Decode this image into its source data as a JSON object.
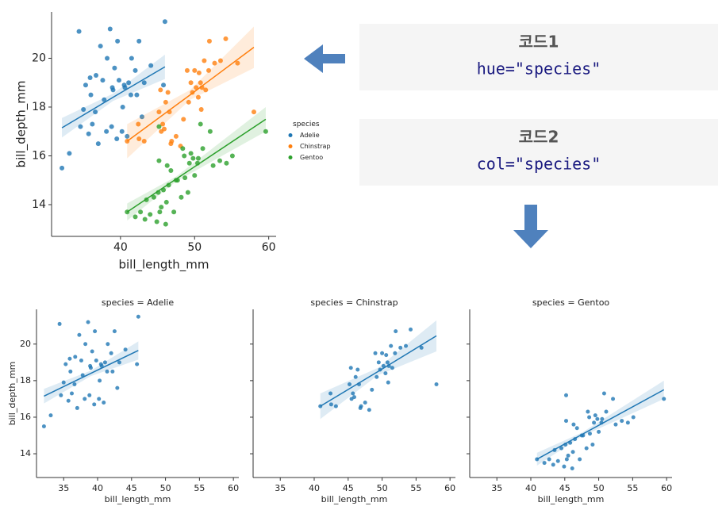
{
  "chart_data": [
    {
      "type": "scatter",
      "xlabel": "bill_length_mm",
      "ylabel": "bill_depth_mm",
      "xlim": [
        30.7,
        61
      ],
      "ylim": [
        12.7,
        21.9
      ],
      "xticks": [
        40,
        50,
        60
      ],
      "yticks": [
        14,
        16,
        18,
        20
      ],
      "legend": true,
      "legend_title": "species",
      "legend_position": "right",
      "series": [
        {
          "name": "Adelie",
          "color": "#1f77b4",
          "x": [
            32.1,
            33.1,
            34.4,
            34.6,
            35.0,
            35.3,
            35.7,
            35.9,
            36.2,
            36.6,
            36.7,
            37.0,
            37.3,
            37.6,
            37.8,
            38.1,
            38.2,
            38.6,
            38.8,
            39.0,
            39.2,
            39.5,
            39.6,
            39.8,
            40.2,
            40.3,
            40.6,
            40.9,
            41.1,
            41.4,
            41.5,
            42.0,
            42.2,
            42.5,
            42.9,
            43.2,
            44.1,
            45.8,
            46.0,
            36.0,
            38.9,
            40.5
          ],
          "values": [
            15.5,
            16.1,
            21.1,
            17.2,
            17.9,
            18.9,
            16.9,
            19.2,
            17.3,
            17.8,
            19.3,
            16.5,
            20.5,
            19.1,
            18.3,
            17.0,
            20.0,
            21.2,
            17.2,
            18.7,
            19.6,
            16.7,
            20.7,
            19.1,
            17.0,
            18.0,
            18.8,
            16.8,
            19.0,
            18.5,
            20.0,
            19.5,
            18.5,
            20.7,
            17.6,
            19.0,
            19.7,
            18.9,
            21.5,
            18.5,
            18.8,
            18.9
          ],
          "fit_x": [
            32.1,
            39,
            46
          ],
          "fit_y": [
            17.15,
            18.4,
            19.65
          ],
          "ci_low": [
            16.75,
            18.25,
            19.15
          ],
          "ci_high": [
            17.55,
            18.55,
            20.15
          ]
        },
        {
          "name": "Chinstrap",
          "color": "#ff7f0e",
          "x": [
            40.9,
            42.4,
            42.5,
            43.2,
            45.2,
            45.4,
            45.5,
            45.7,
            46.1,
            46.4,
            46.6,
            46.8,
            46.9,
            47.5,
            48.1,
            49.0,
            49.2,
            49.5,
            49.7,
            50.0,
            50.2,
            50.5,
            50.6,
            50.8,
            51.0,
            51.3,
            51.5,
            51.9,
            52.0,
            52.7,
            53.5,
            54.2,
            55.8,
            58.0,
            45.9,
            48.5,
            50.9
          ],
          "values": [
            16.6,
            17.3,
            16.7,
            16.6,
            17.8,
            18.7,
            17.0,
            17.3,
            18.2,
            18.6,
            17.8,
            16.5,
            16.6,
            16.8,
            16.4,
            19.5,
            18.2,
            19.0,
            18.6,
            19.5,
            18.8,
            18.4,
            19.4,
            19.0,
            18.8,
            19.9,
            18.7,
            19.5,
            20.7,
            19.8,
            19.9,
            20.8,
            19.8,
            17.8,
            17.1,
            17.5,
            17.9
          ],
          "fit_x": [
            40.9,
            49.4,
            58
          ],
          "fit_y": [
            16.6,
            18.5,
            20.45
          ],
          "ci_low": [
            15.9,
            18.3,
            19.6
          ],
          "ci_high": [
            17.3,
            18.7,
            21.3
          ]
        },
        {
          "name": "Gentoo",
          "color": "#2ca02c",
          "x": [
            40.9,
            42.0,
            42.7,
            43.3,
            43.5,
            44.0,
            44.5,
            44.9,
            45.1,
            45.2,
            45.3,
            45.5,
            45.8,
            46.1,
            46.2,
            46.5,
            46.8,
            47.2,
            47.5,
            47.7,
            48.2,
            48.4,
            48.7,
            49.1,
            49.3,
            49.5,
            49.8,
            50.0,
            50.4,
            50.5,
            50.8,
            51.1,
            52.1,
            52.5,
            53.4,
            54.3,
            55.1,
            59.6,
            45.2,
            46.3,
            48.6
          ],
          "values": [
            13.7,
            13.5,
            13.7,
            13.4,
            14.2,
            13.6,
            14.3,
            13.3,
            14.5,
            15.8,
            13.7,
            13.9,
            14.6,
            13.2,
            14.1,
            14.8,
            15.4,
            13.7,
            15.0,
            15.0,
            14.3,
            16.3,
            15.1,
            14.5,
            15.7,
            16.1,
            15.9,
            15.2,
            15.7,
            15.9,
            17.3,
            16.3,
            17.0,
            15.6,
            15.8,
            15.7,
            16.0,
            17.0,
            17.2,
            15.6,
            16.0
          ],
          "fit_x": [
            40.9,
            47.5,
            59.6
          ],
          "fit_y": [
            13.7,
            15.05,
            17.5
          ],
          "ci_low": [
            13.35,
            14.95,
            17.0
          ],
          "ci_high": [
            14.05,
            15.15,
            18.0
          ]
        }
      ]
    },
    {
      "type": "scatter",
      "title": "species = Adelie",
      "xlabel": "bill_length_mm",
      "ylabel": "bill_depth_mm",
      "xlim": [
        31,
        60.8
      ],
      "ylim": [
        12.7,
        21.9
      ],
      "xticks": [
        35,
        40,
        45,
        50,
        55,
        60
      ],
      "yticks": [
        14,
        16,
        18,
        20
      ],
      "yticklabels": true,
      "series": [
        {
          "color": "#1f77b4",
          "x": [
            32.1,
            33.1,
            34.4,
            34.6,
            35.0,
            35.3,
            35.7,
            35.9,
            36.2,
            36.6,
            36.7,
            37.0,
            37.3,
            37.6,
            37.8,
            38.1,
            38.2,
            38.6,
            38.8,
            39.0,
            39.2,
            39.5,
            39.6,
            39.8,
            40.2,
            40.3,
            40.6,
            40.9,
            41.1,
            41.4,
            41.5,
            42.0,
            42.2,
            42.5,
            42.9,
            43.2,
            44.1,
            45.8,
            46.0,
            36.0,
            38.9,
            40.5
          ],
          "values": [
            15.5,
            16.1,
            21.1,
            17.2,
            17.9,
            18.9,
            16.9,
            19.2,
            17.3,
            17.8,
            19.3,
            16.5,
            20.5,
            19.1,
            18.3,
            17.0,
            20.0,
            21.2,
            17.2,
            18.7,
            19.6,
            16.7,
            20.7,
            19.1,
            17.0,
            18.0,
            18.8,
            16.8,
            19.0,
            18.5,
            20.0,
            19.5,
            18.5,
            20.7,
            17.6,
            19.0,
            19.7,
            18.9,
            21.5,
            18.5,
            18.8,
            18.9
          ],
          "fit_x": [
            32.1,
            39,
            46
          ],
          "fit_y": [
            17.15,
            18.4,
            19.65
          ],
          "ci_low": [
            16.75,
            18.25,
            19.15
          ],
          "ci_high": [
            17.55,
            18.55,
            20.15
          ]
        }
      ]
    },
    {
      "type": "scatter",
      "title": "species = Chinstrap",
      "xlabel": "bill_length_mm",
      "xlim": [
        31,
        60.8
      ],
      "ylim": [
        12.7,
        21.9
      ],
      "xticks": [
        35,
        40,
        45,
        50,
        55,
        60
      ],
      "yticks": [
        14,
        16,
        18,
        20
      ],
      "yticklabels": false,
      "series": [
        {
          "color": "#1f77b4",
          "x": [
            40.9,
            42.4,
            42.5,
            43.2,
            45.2,
            45.4,
            45.5,
            45.7,
            46.1,
            46.4,
            46.6,
            46.8,
            46.9,
            47.5,
            48.1,
            49.0,
            49.2,
            49.5,
            49.7,
            50.0,
            50.2,
            50.5,
            50.6,
            50.8,
            51.0,
            51.3,
            51.5,
            51.9,
            52.0,
            52.7,
            53.5,
            54.2,
            55.8,
            58.0,
            45.9,
            48.5,
            50.9
          ],
          "values": [
            16.6,
            17.3,
            16.7,
            16.6,
            17.8,
            18.7,
            17.0,
            17.3,
            18.2,
            18.6,
            17.8,
            16.5,
            16.6,
            16.8,
            16.4,
            19.5,
            18.2,
            19.0,
            18.6,
            19.5,
            18.8,
            18.4,
            19.4,
            19.0,
            18.8,
            19.9,
            18.7,
            19.5,
            20.7,
            19.8,
            19.9,
            20.8,
            19.8,
            17.8,
            17.1,
            17.5,
            17.9
          ],
          "fit_x": [
            40.9,
            49.4,
            58
          ],
          "fit_y": [
            16.6,
            18.5,
            20.45
          ],
          "ci_low": [
            15.9,
            18.3,
            19.6
          ],
          "ci_high": [
            17.3,
            18.7,
            21.3
          ]
        }
      ]
    },
    {
      "type": "scatter",
      "title": "species = Gentoo",
      "xlabel": "bill_length_mm",
      "xlim": [
        31,
        60.8
      ],
      "ylim": [
        12.7,
        21.9
      ],
      "xticks": [
        35,
        40,
        45,
        50,
        55,
        60
      ],
      "yticks": [
        14,
        16,
        18,
        20
      ],
      "yticklabels": false,
      "series": [
        {
          "color": "#1f77b4",
          "x": [
            40.9,
            42.0,
            42.7,
            43.3,
            43.5,
            44.0,
            44.5,
            44.9,
            45.1,
            45.2,
            45.3,
            45.5,
            45.8,
            46.1,
            46.2,
            46.5,
            46.8,
            47.2,
            47.5,
            47.7,
            48.2,
            48.4,
            48.7,
            49.1,
            49.3,
            49.5,
            49.8,
            50.0,
            50.4,
            50.5,
            50.8,
            51.1,
            52.1,
            52.5,
            53.4,
            54.3,
            55.1,
            59.6,
            45.2,
            46.3,
            48.6
          ],
          "values": [
            13.7,
            13.5,
            13.7,
            13.4,
            14.2,
            13.6,
            14.3,
            13.3,
            14.5,
            15.8,
            13.7,
            13.9,
            14.6,
            13.2,
            14.1,
            14.8,
            15.4,
            13.7,
            15.0,
            15.0,
            14.3,
            16.3,
            15.1,
            14.5,
            15.7,
            16.1,
            15.9,
            15.2,
            15.7,
            15.9,
            17.3,
            16.3,
            17.0,
            15.6,
            15.8,
            15.7,
            16.0,
            17.0,
            17.2,
            15.6,
            16.0
          ],
          "fit_x": [
            40.9,
            47.5,
            59.6
          ],
          "fit_y": [
            13.7,
            15.05,
            17.5
          ],
          "ci_low": [
            13.35,
            14.95,
            17.0
          ],
          "ci_high": [
            14.05,
            15.15,
            18.0
          ]
        }
      ]
    }
  ],
  "notes": [
    {
      "title": "코드1",
      "code": "hue=\"species\""
    },
    {
      "title": "코드2",
      "code": "col=\"species\""
    }
  ]
}
